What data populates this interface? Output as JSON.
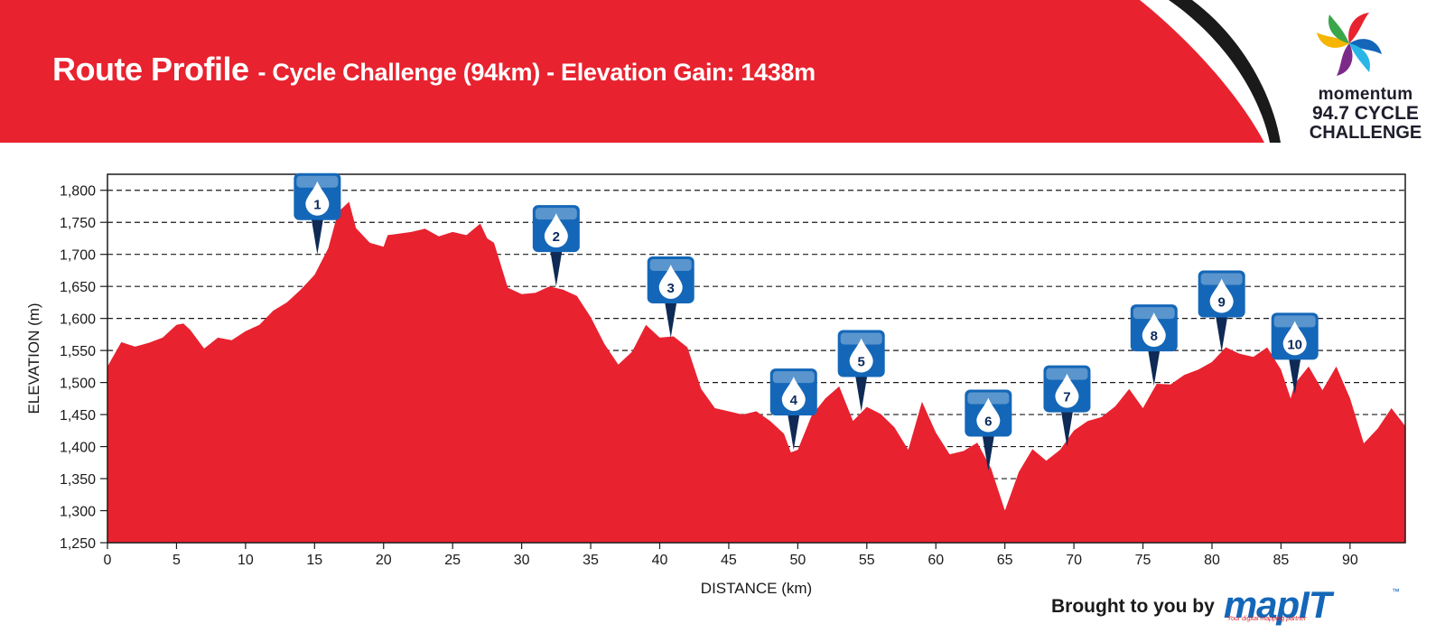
{
  "header": {
    "title": "Route Profile",
    "subtitle": "- Cycle Challenge (94km) - Elevation Gain: 1438m"
  },
  "logo": {
    "brand": "momentum",
    "line1": "94.7 CYCLE",
    "line2": "CHALLENGE",
    "icon": "pinwheel-logo"
  },
  "footer": {
    "brought_by": "Brought to you by",
    "partner": "mapIT",
    "partner_tag": "Your digital mapping partner"
  },
  "colors": {
    "band_red": "#e8222f",
    "area_red": "#e8222f",
    "accent_black": "#1a1a1a",
    "marker_blue": "#1467b8",
    "marker_pin": "#0e2a55"
  },
  "chart_data": {
    "type": "area",
    "title": "",
    "xlabel": "DISTANCE (km)",
    "ylabel": "ELEVATION (m)",
    "xlim": [
      0,
      94
    ],
    "ylim": [
      1250,
      1825
    ],
    "grid": "horizontal dashed",
    "x_ticks": [
      0,
      5,
      10,
      15,
      20,
      25,
      30,
      35,
      40,
      45,
      50,
      55,
      60,
      65,
      70,
      75,
      80,
      85,
      90
    ],
    "y_ticks": [
      1250,
      1300,
      1350,
      1400,
      1450,
      1500,
      1550,
      1600,
      1650,
      1700,
      1750,
      1800
    ],
    "y_tick_labels": [
      "1,250",
      "1,300",
      "1,350",
      "1,400",
      "1,450",
      "1,500",
      "1,550",
      "1,600",
      "1,650",
      "1,700",
      "1,750",
      "1,800"
    ],
    "series": [
      {
        "x": [
          0,
          1,
          2,
          3,
          4,
          5,
          5.5,
          6,
          7,
          8,
          9,
          10,
          11,
          12,
          13,
          14,
          15,
          16,
          16.7,
          17.5,
          18,
          19,
          20,
          20.3,
          21,
          22,
          23,
          24,
          25,
          26,
          27,
          27.5,
          28,
          29,
          30,
          31,
          32,
          33,
          34,
          35,
          36,
          37,
          38,
          39,
          40,
          41,
          42,
          43,
          44,
          45,
          46,
          47,
          48,
          49,
          49.5,
          50,
          51,
          52,
          53,
          54,
          55,
          56,
          57,
          58,
          59,
          60,
          61,
          62,
          63,
          64,
          65,
          66,
          67,
          68,
          69,
          70,
          71,
          72,
          73,
          74,
          75,
          76,
          77,
          78,
          79,
          80,
          81,
          82,
          83,
          84,
          85,
          85.7,
          86,
          87,
          88,
          89,
          90,
          91,
          92,
          93,
          94
        ],
        "values": [
          1525,
          1563,
          1556,
          1562,
          1570,
          1590,
          1592,
          1582,
          1553,
          1570,
          1566,
          1580,
          1590,
          1612,
          1625,
          1645,
          1668,
          1710,
          1766,
          1782,
          1741,
          1718,
          1712,
          1730,
          1732,
          1735,
          1740,
          1728,
          1735,
          1730,
          1748,
          1725,
          1718,
          1648,
          1638,
          1640,
          1650,
          1645,
          1635,
          1602,
          1560,
          1528,
          1548,
          1590,
          1570,
          1572,
          1555,
          1490,
          1460,
          1455,
          1450,
          1455,
          1440,
          1420,
          1391,
          1395,
          1448,
          1475,
          1494,
          1440,
          1462,
          1451,
          1430,
          1395,
          1470,
          1422,
          1388,
          1393,
          1406,
          1366,
          1300,
          1360,
          1396,
          1378,
          1395,
          1425,
          1440,
          1446,
          1463,
          1490,
          1460,
          1498,
          1497,
          1512,
          1520,
          1532,
          1555,
          1545,
          1540,
          1555,
          1520,
          1475,
          1498,
          1525,
          1488,
          1525,
          1475,
          1405,
          1428,
          1460,
          1432
        ]
      }
    ],
    "markers": [
      {
        "label": "1",
        "x": 15.2,
        "elevation": 1700
      },
      {
        "label": "2",
        "x": 32.5,
        "elevation": 1650
      },
      {
        "label": "3",
        "x": 40.8,
        "elevation": 1570
      },
      {
        "label": "4",
        "x": 49.7,
        "elevation": 1395
      },
      {
        "label": "5",
        "x": 54.6,
        "elevation": 1455
      },
      {
        "label": "6",
        "x": 63.8,
        "elevation": 1362
      },
      {
        "label": "7",
        "x": 69.5,
        "elevation": 1400
      },
      {
        "label": "8",
        "x": 75.8,
        "elevation": 1495
      },
      {
        "label": "9",
        "x": 80.7,
        "elevation": 1548
      },
      {
        "label": "10",
        "x": 86.0,
        "elevation": 1482
      }
    ]
  }
}
